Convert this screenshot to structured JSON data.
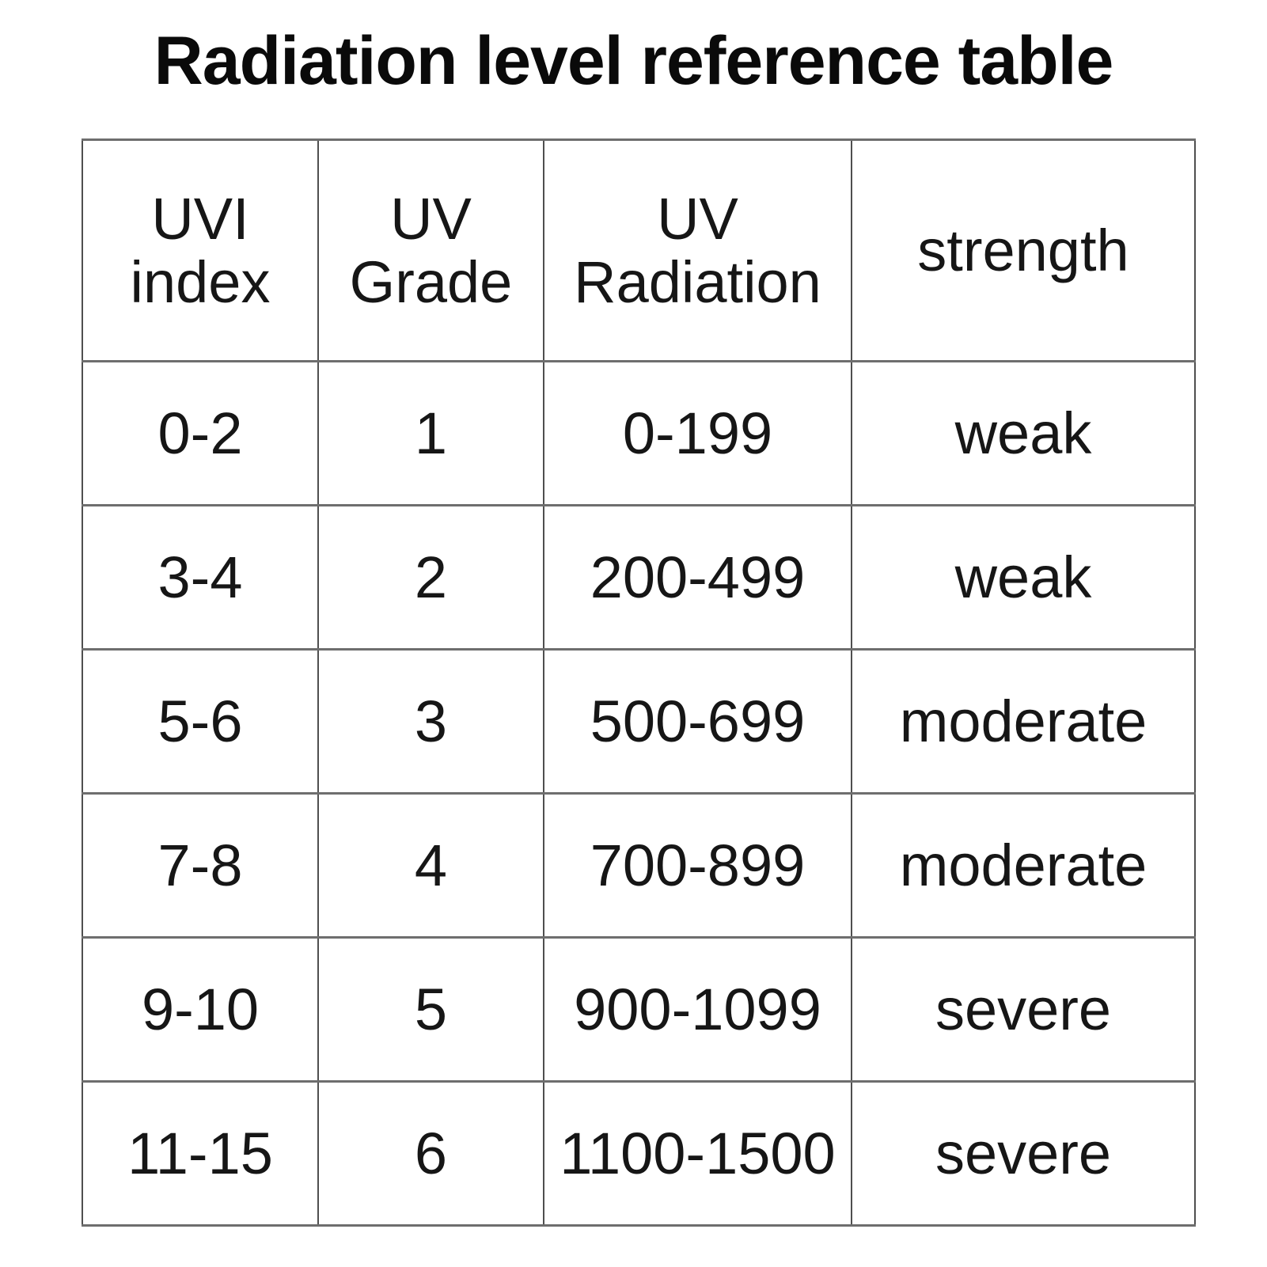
{
  "title": "Radiation level reference table",
  "headers": [
    {
      "label": "UVI index",
      "lines": [
        "UVI",
        "index"
      ]
    },
    {
      "label": "UV Grade",
      "lines": [
        "UV",
        "Grade"
      ]
    },
    {
      "label": "UV Radiation",
      "lines": [
        "UV",
        "Radiation"
      ]
    },
    {
      "label": "strength",
      "lines": [
        "strength"
      ]
    }
  ],
  "rows": [
    {
      "cells": [
        "0-2",
        "1",
        "0-199",
        "weak"
      ]
    },
    {
      "cells": [
        "3-4",
        "2",
        "200-499",
        "weak"
      ]
    },
    {
      "cells": [
        "5-6",
        "3",
        "500-699",
        "moderate"
      ]
    },
    {
      "cells": [
        "7-8",
        "4",
        "700-899",
        "moderate"
      ]
    },
    {
      "cells": [
        "9-10",
        "5",
        "900-1099",
        "severe"
      ]
    },
    {
      "cells": [
        "11-15",
        "6",
        "1100-1500",
        "severe"
      ]
    }
  ],
  "colors": {
    "text": "#161616",
    "title": "#0a0a0a",
    "border-v": "#4f4f4f",
    "border-h": "#6e6e6e",
    "background": "#ffffff"
  },
  "chart_data": {
    "type": "table",
    "title": "Radiation level reference table",
    "columns": [
      "UVI index",
      "UV Grade",
      "UV Radiation",
      "strength"
    ],
    "rows": [
      [
        "0-2",
        "1",
        "0-199",
        "weak"
      ],
      [
        "3-4",
        "2",
        "200-499",
        "weak"
      ],
      [
        "5-6",
        "3",
        "500-699",
        "moderate"
      ],
      [
        "7-8",
        "4",
        "700-899",
        "moderate"
      ],
      [
        "9-10",
        "5",
        "900-1099",
        "severe"
      ],
      [
        "11-15",
        "6",
        "1100-1500",
        "severe"
      ]
    ]
  }
}
